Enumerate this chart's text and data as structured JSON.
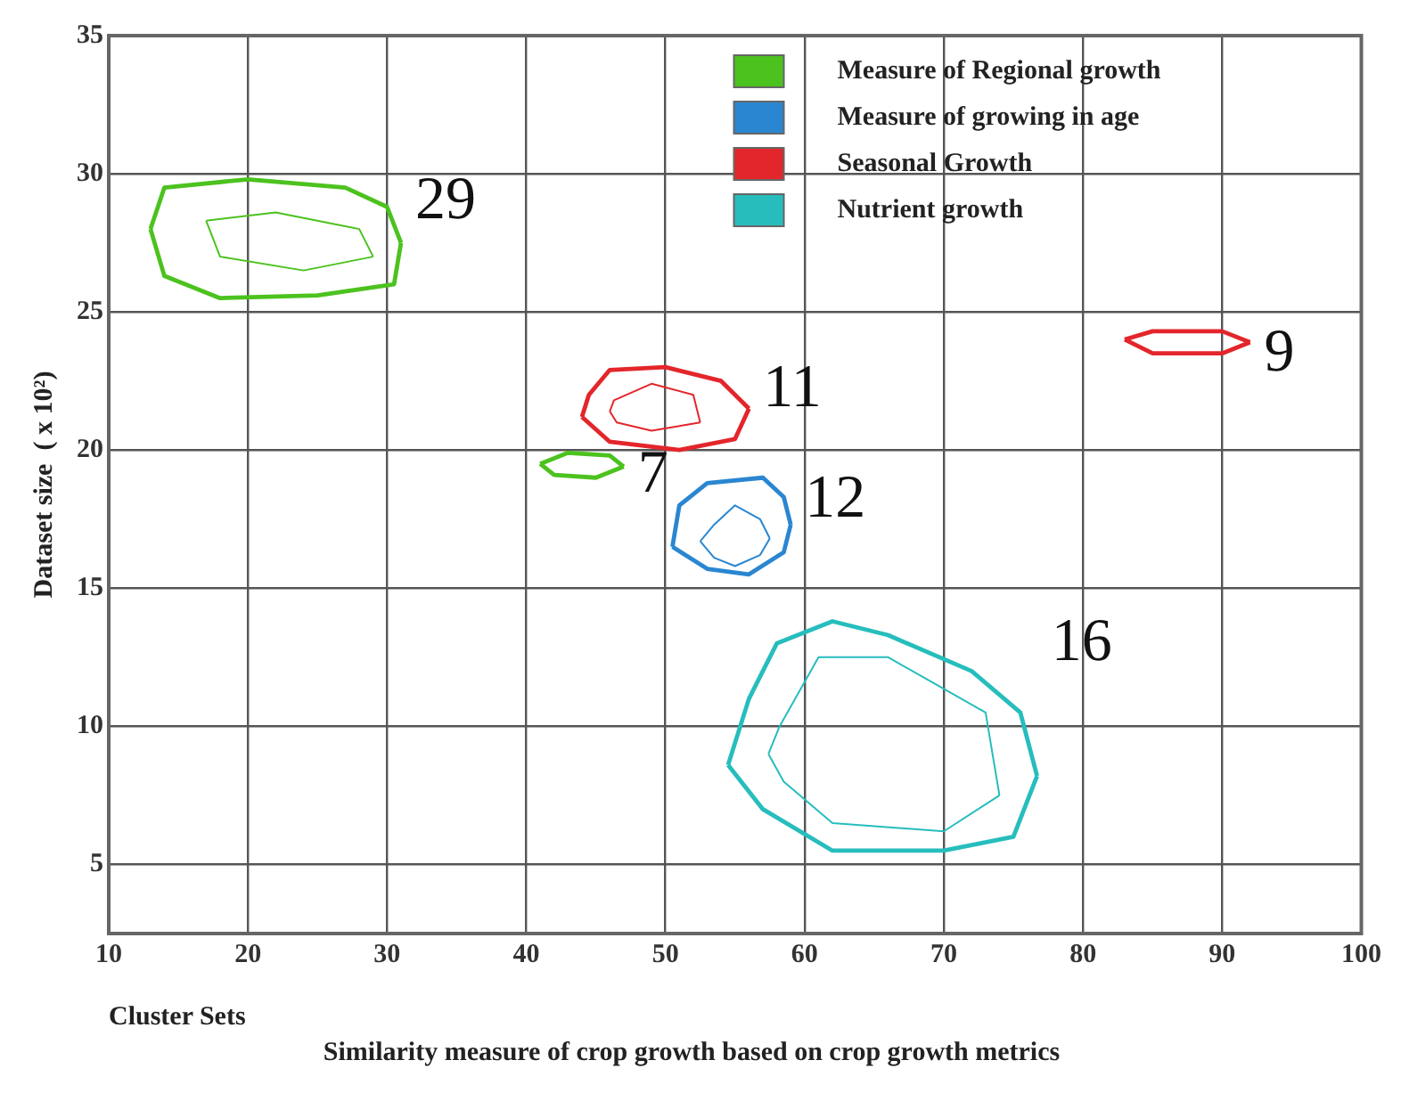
{
  "chart_data": {
    "type": "line",
    "title": "Similarity measure of crop growth based on crop growth metrics",
    "xlabel": "Cluster Sets",
    "ylabel": "Dataset size  ( x 10²)",
    "xlim": [
      10,
      100
    ],
    "xticks": [
      10,
      20,
      30,
      40,
      50,
      60,
      70,
      80,
      90,
      100
    ],
    "ylim": [
      2.5,
      35
    ],
    "yticks": [
      5,
      10,
      15,
      20,
      25,
      30,
      35
    ],
    "grid": true,
    "legend": "top right",
    "marker": "none",
    "line_style": "solid",
    "series": [
      {
        "name": "Measure of Regional growth",
        "color": "#4cc21e",
        "x": [
          13,
          14,
          20,
          27,
          30,
          31
        ],
        "values": [
          28,
          29.5,
          29.8,
          29.5,
          28.8,
          27.5
        ]
      },
      {
        "color": "#4cc21e",
        "x": [
          13,
          14,
          18,
          25,
          30.5,
          31
        ],
        "values": [
          28,
          26.3,
          25.5,
          25.6,
          26,
          27.5
        ]
      },
      {
        "color": "#4cc21e",
        "x": [
          17,
          22,
          28,
          29
        ],
        "values": [
          28.3,
          28.6,
          28,
          27
        ]
      },
      {
        "color": "#4cc21e",
        "x": [
          17,
          18,
          24,
          29
        ],
        "values": [
          28.3,
          27,
          26.5,
          27
        ]
      },
      {
        "color": "#4cc21e",
        "x": [
          41,
          43,
          46,
          47
        ],
        "values": [
          19.5,
          19.9,
          19.8,
          19.4
        ]
      },
      {
        "color": "#4cc21e",
        "x": [
          41,
          42,
          45,
          47
        ],
        "values": [
          19.5,
          19.1,
          19,
          19.4
        ]
      },
      {
        "name": "Measure of growing in age",
        "color": "#2a86d0",
        "x": [
          50.5,
          51,
          53,
          57,
          58.5,
          59
        ],
        "values": [
          16.5,
          18,
          18.8,
          19,
          18.3,
          17.3
        ]
      },
      {
        "color": "#2a86d0",
        "x": [
          50.5,
          53,
          56,
          58.5,
          59
        ],
        "values": [
          16.5,
          15.7,
          15.5,
          16.3,
          17.3
        ]
      },
      {
        "color": "#2a86d0",
        "x": [
          52.5,
          53.5,
          55,
          56.8,
          57.5
        ],
        "values": [
          16.7,
          17.3,
          18,
          17.5,
          16.8
        ]
      },
      {
        "color": "#2a86d0",
        "x": [
          52.5,
          53.5,
          55,
          56.8,
          57.5
        ],
        "values": [
          16.7,
          16.1,
          15.8,
          16.2,
          16.8
        ]
      },
      {
        "name": "Seasonal Growth",
        "color": "#e3262b",
        "x": [
          44,
          44.5,
          46,
          50,
          54,
          56
        ],
        "values": [
          21.2,
          22,
          22.9,
          23,
          22.5,
          21.5
        ]
      },
      {
        "color": "#e3262b",
        "x": [
          44,
          46,
          51,
          55,
          56
        ],
        "values": [
          21.2,
          20.3,
          20,
          20.4,
          21.5
        ]
      },
      {
        "color": "#e3262b",
        "x": [
          46,
          46.3,
          49,
          52,
          52.5
        ],
        "values": [
          21.4,
          21.8,
          22.4,
          22,
          21
        ]
      },
      {
        "color": "#e3262b",
        "x": [
          46,
          46.5,
          49,
          52.5
        ],
        "values": [
          21.4,
          21,
          20.7,
          21
        ]
      },
      {
        "color": "#e3262b",
        "x": [
          83,
          85,
          90,
          92
        ],
        "values": [
          24,
          24.3,
          24.3,
          23.9
        ]
      },
      {
        "color": "#e3262b",
        "x": [
          83,
          85,
          90,
          92
        ],
        "values": [
          24,
          23.5,
          23.5,
          23.9
        ]
      },
      {
        "name": "Nutrient growth",
        "color": "#27bdbd",
        "x": [
          54.5,
          56,
          58,
          62,
          66,
          72,
          75.5,
          76.7
        ],
        "values": [
          8.6,
          11,
          13,
          13.8,
          13.3,
          12,
          10.5,
          8.2
        ]
      },
      {
        "color": "#27bdbd",
        "x": [
          54.5,
          57,
          62,
          70,
          75,
          76.7
        ],
        "values": [
          8.6,
          7,
          5.5,
          5.5,
          6,
          8.2
        ]
      },
      {
        "color": "#27bdbd",
        "x": [
          57.4,
          58.2,
          61,
          66,
          73,
          74
        ],
        "values": [
          9,
          10,
          12.5,
          12.5,
          10.5,
          7.5
        ]
      },
      {
        "color": "#27bdbd",
        "x": [
          57.4,
          58.5,
          62,
          70,
          74
        ],
        "values": [
          9,
          8,
          6.5,
          6.2,
          7.5
        ]
      }
    ],
    "annotations": [
      "29",
      "7",
      "12",
      "11",
      "9",
      "16"
    ]
  }
}
